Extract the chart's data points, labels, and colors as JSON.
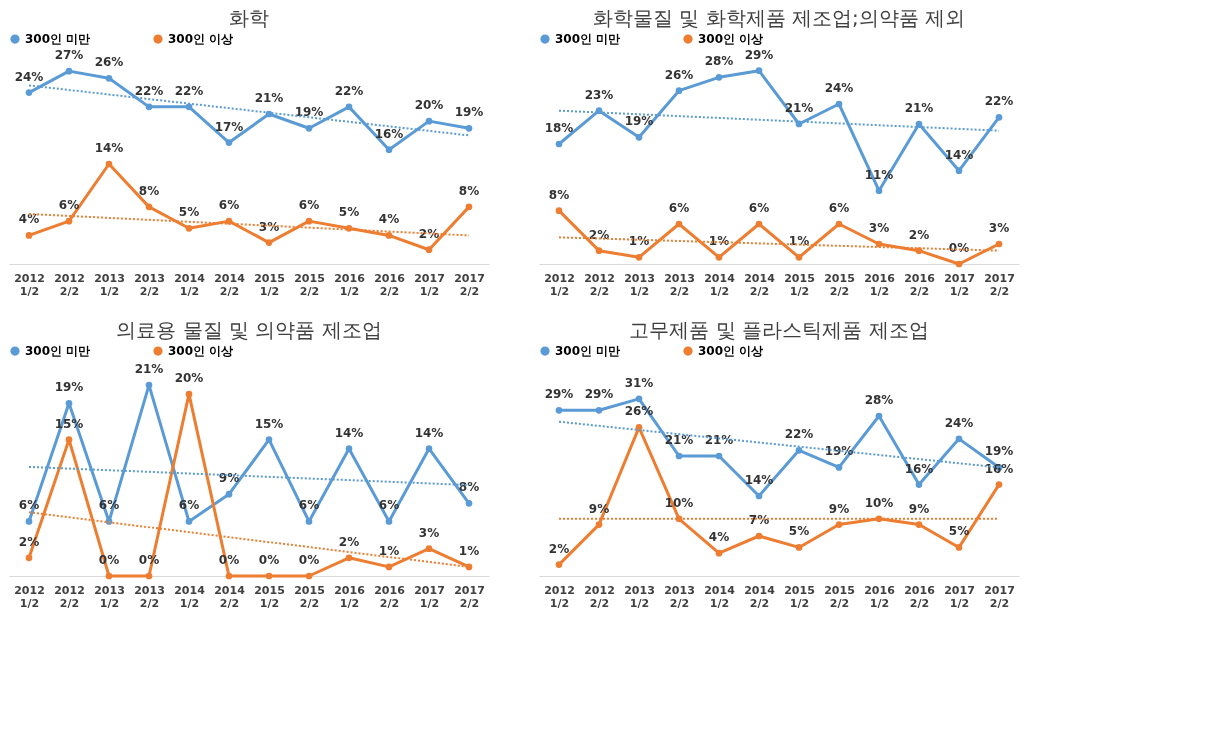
{
  "chart_data": [
    {
      "type": "line",
      "title": "화학",
      "categories": [
        "2012\n1/2",
        "2012\n2/2",
        "2013\n1/2",
        "2013\n2/2",
        "2014\n1/2",
        "2014\n2/2",
        "2015\n1/2",
        "2015\n2/2",
        "2016\n1/2",
        "2016\n2/2",
        "2017\n1/2",
        "2017\n2/2"
      ],
      "legend": "top",
      "marker": "circle",
      "tick_labels": "x",
      "series": [
        {
          "name": "300인 미만",
          "color": "#5b9bd5",
          "values": [
            24,
            27,
            26,
            22,
            22,
            17,
            21,
            19,
            22,
            16,
            20,
            19
          ],
          "value_labels": [
            "24%",
            "27%",
            "26%",
            "22%",
            "22%",
            "17%",
            "21%",
            "19%",
            "22%",
            "16%",
            "20%",
            "19%"
          ]
        },
        {
          "name": "300인 이상",
          "color": "#ed7d31",
          "values": [
            4,
            6,
            14,
            8,
            5,
            6,
            3,
            6,
            5,
            4,
            2,
            8
          ],
          "value_labels": [
            "4%",
            "6%",
            "14%",
            "8%",
            "5%",
            "6%",
            "3%",
            "6%",
            "5%",
            "4%",
            "2%",
            "8%"
          ]
        },
        {
          "type": "line",
          "line_style": "dotted",
          "marker": "none",
          "color": "#5b9bd5",
          "values": [
            25,
            null,
            null,
            null,
            null,
            null,
            null,
            null,
            null,
            null,
            null,
            18
          ]
        },
        {
          "type": "line",
          "line_style": "dotted",
          "marker": "none",
          "color": "#ed7d31",
          "values": [
            7,
            null,
            null,
            null,
            null,
            null,
            null,
            null,
            null,
            null,
            null,
            4
          ]
        }
      ]
    },
    {
      "type": "line",
      "title": "화학물질 및 화학제품 제조업;의약품 제외",
      "categories": [
        "2012\n1/2",
        "2012\n2/2",
        "2013\n1/2",
        "2013\n2/2",
        "2014\n1/2",
        "2014\n2/2",
        "2015\n1/2",
        "2015\n2/2",
        "2016\n1/2",
        "2016\n2/2",
        "2017\n1/2",
        "2017\n2/2"
      ],
      "legend": "top",
      "marker": "circle",
      "tick_labels": "x",
      "series": [
        {
          "name": "300인 미만",
          "color": "#5b9bd5",
          "values": [
            18,
            23,
            19,
            26,
            28,
            29,
            21,
            24,
            11,
            21,
            14,
            22
          ],
          "value_labels": [
            "18%",
            "23%",
            "19%",
            "26%",
            "28%",
            "29%",
            "21%",
            "24%",
            "11%",
            "21%",
            "14%",
            "22%"
          ]
        },
        {
          "name": "300인 이상",
          "color": "#ed7d31",
          "values": [
            8,
            2,
            1,
            6,
            1,
            6,
            1,
            6,
            3,
            2,
            0,
            3
          ],
          "value_labels": [
            "8%",
            "2%",
            "1%",
            "6%",
            "1%",
            "6%",
            "1%",
            "6%",
            "3%",
            "2%",
            "0%",
            "3%"
          ]
        },
        {
          "type": "line",
          "line_style": "dotted",
          "marker": "none",
          "color": "#5b9bd5",
          "values": [
            23,
            null,
            null,
            null,
            null,
            null,
            null,
            null,
            null,
            null,
            null,
            20
          ]
        },
        {
          "type": "line",
          "line_style": "dotted",
          "marker": "none",
          "color": "#ed7d31",
          "values": [
            4,
            null,
            null,
            null,
            null,
            null,
            null,
            null,
            null,
            null,
            null,
            2
          ]
        }
      ]
    },
    {
      "type": "line",
      "title": "의료용 물질 및 의약품 제조업",
      "categories": [
        "2012\n1/2",
        "2012\n2/2",
        "2013\n1/2",
        "2013\n2/2",
        "2014\n1/2",
        "2014\n2/2",
        "2015\n1/2",
        "2015\n2/2",
        "2016\n1/2",
        "2016\n2/2",
        "2017\n1/2",
        "2017\n2/2"
      ],
      "legend": "top",
      "marker": "circle",
      "tick_labels": "x",
      "series": [
        {
          "name": "300인 미만",
          "color": "#5b9bd5",
          "values": [
            6,
            19,
            6,
            21,
            6,
            9,
            15,
            6,
            14,
            6,
            14,
            8
          ],
          "value_labels": [
            "6%",
            "19%",
            "6%",
            "21%",
            "6%",
            "9%",
            "15%",
            "6%",
            "14%",
            "6%",
            "14%",
            "8%"
          ]
        },
        {
          "name": "300인 이상",
          "color": "#ed7d31",
          "values": [
            2,
            15,
            0,
            0,
            20,
            0,
            0,
            0,
            2,
            1,
            3,
            1
          ],
          "value_labels": [
            "2%",
            "15%",
            "0%",
            "0%",
            "20%",
            "0%",
            "0%",
            "0%",
            "2%",
            "1%",
            "3%",
            "1%"
          ]
        },
        {
          "type": "line",
          "line_style": "dotted",
          "marker": "none",
          "color": "#5b9bd5",
          "values": [
            12,
            null,
            null,
            null,
            null,
            null,
            null,
            null,
            null,
            null,
            null,
            10
          ]
        },
        {
          "type": "line",
          "line_style": "dotted",
          "marker": "none",
          "color": "#ed7d31",
          "values": [
            7,
            null,
            null,
            null,
            null,
            null,
            null,
            null,
            null,
            null,
            null,
            1
          ]
        }
      ]
    },
    {
      "type": "line",
      "title": "고무제품 및 플라스틱제품 제조업",
      "categories": [
        "2012\n1/2",
        "2012\n2/2",
        "2013\n1/2",
        "2013\n2/2",
        "2014\n1/2",
        "2014\n2/2",
        "2015\n1/2",
        "2015\n2/2",
        "2016\n1/2",
        "2016\n2/2",
        "2017\n1/2",
        "2017\n2/2"
      ],
      "legend": "top",
      "marker": "circle",
      "tick_labels": "x",
      "series": [
        {
          "name": "300인 미만",
          "color": "#5b9bd5",
          "values": [
            29,
            29,
            31,
            21,
            21,
            14,
            22,
            19,
            28,
            16,
            24,
            19
          ],
          "value_labels": [
            "29%",
            "29%",
            "31%",
            "21%",
            "21%",
            "14%",
            "22%",
            "19%",
            "28%",
            "16%",
            "24%",
            "19%"
          ]
        },
        {
          "name": "300인 이상",
          "color": "#ed7d31",
          "values": [
            2,
            9,
            26,
            10,
            4,
            7,
            5,
            9,
            10,
            9,
            5,
            16
          ],
          "value_labels": [
            "2%",
            "9%",
            "26%",
            "10%",
            "4%",
            "7%",
            "5%",
            "9%",
            "10%",
            "9%",
            "5%",
            "16%"
          ]
        },
        {
          "type": "line",
          "line_style": "dotted",
          "marker": "none",
          "color": "#5b9bd5",
          "values": [
            27,
            null,
            null,
            null,
            null,
            null,
            null,
            null,
            null,
            null,
            null,
            19
          ]
        },
        {
          "type": "line",
          "line_style": "dotted",
          "marker": "none",
          "color": "#ed7d31",
          "values": [
            10,
            null,
            null,
            null,
            null,
            null,
            null,
            null,
            null,
            null,
            null,
            10
          ]
        }
      ]
    }
  ]
}
